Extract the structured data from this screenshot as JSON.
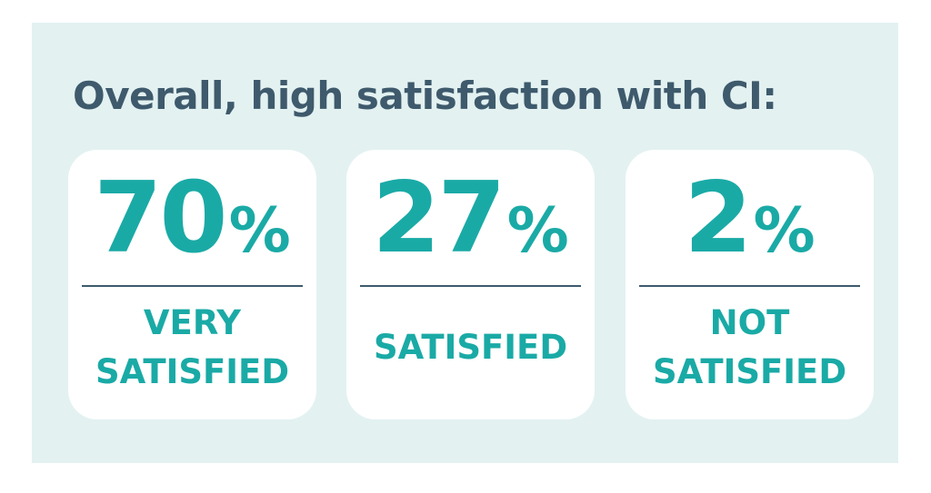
{
  "title": "Overall, high satisfaction with CI:",
  "cards": [
    {
      "number": "70",
      "unit": "%",
      "label_lines": [
        "VERY",
        "SATISFIED"
      ]
    },
    {
      "number": "27",
      "unit": "%",
      "label_lines": [
        "SATISFIED"
      ]
    },
    {
      "number": "2",
      "unit": "%",
      "label_lines": [
        "NOT",
        "SATISFIED"
      ]
    }
  ]
}
